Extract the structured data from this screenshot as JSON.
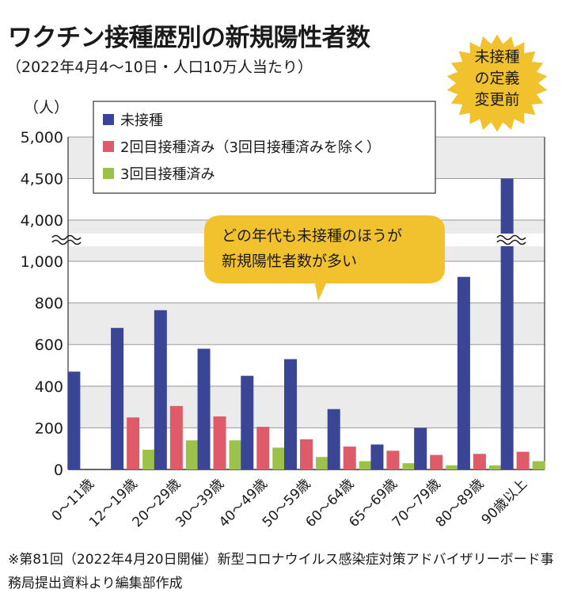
{
  "header": {
    "title": "ワクチン接種歴別の新規陽性者数",
    "subtitle": "（2022年4月4～10日・人口10万人当たり）"
  },
  "badge": {
    "lines": [
      "未接種",
      "の定義",
      "変更前"
    ],
    "color": "#f2c12e"
  },
  "callout": {
    "lines": [
      "どの年代も未接種のほうが",
      "新規陽性者数が多い"
    ],
    "color": "#f2c12e"
  },
  "footnote": "※第81回（2022年4月20日開催）新型コロナウイルス感染症対策アドバイザリーボード事務局提出資料より編集部作成",
  "chart_data": {
    "type": "bar",
    "ylabel": "（人）",
    "y_upper_range": [
      4000,
      5000
    ],
    "y_lower_range": [
      0,
      1000
    ],
    "y_ticks_upper": [
      "4,000",
      "4,500",
      "5,000"
    ],
    "y_ticks_lower": [
      "0",
      "200",
      "400",
      "600",
      "800",
      "1,000"
    ],
    "y_tick_values_upper": [
      4000,
      4500,
      5000
    ],
    "y_tick_values_lower": [
      0,
      200,
      400,
      600,
      800,
      1000
    ],
    "axis_break": true,
    "legend_placement": "top-left",
    "grid": true,
    "categories": [
      "0～11歳",
      "12～19歳",
      "20～29歳",
      "30～39歳",
      "40～49歳",
      "50～59歳",
      "60～64歳",
      "65～69歳",
      "70～79歳",
      "80～89歳",
      "90歳以上"
    ],
    "series": [
      {
        "name": "未接種",
        "color": "#3a4595",
        "values": [
          470,
          680,
          765,
          580,
          450,
          530,
          290,
          120,
          200,
          925,
          4500
        ]
      },
      {
        "name": "2回目接種済み（3回目接種済みを除く）",
        "color": "#e05b6a",
        "values": [
          0,
          250,
          305,
          255,
          205,
          145,
          110,
          90,
          70,
          75,
          85
        ]
      },
      {
        "name": "3回目接種済み",
        "color": "#9cc24a",
        "values": [
          0,
          95,
          140,
          140,
          105,
          60,
          40,
          30,
          20,
          20,
          40
        ]
      }
    ]
  }
}
